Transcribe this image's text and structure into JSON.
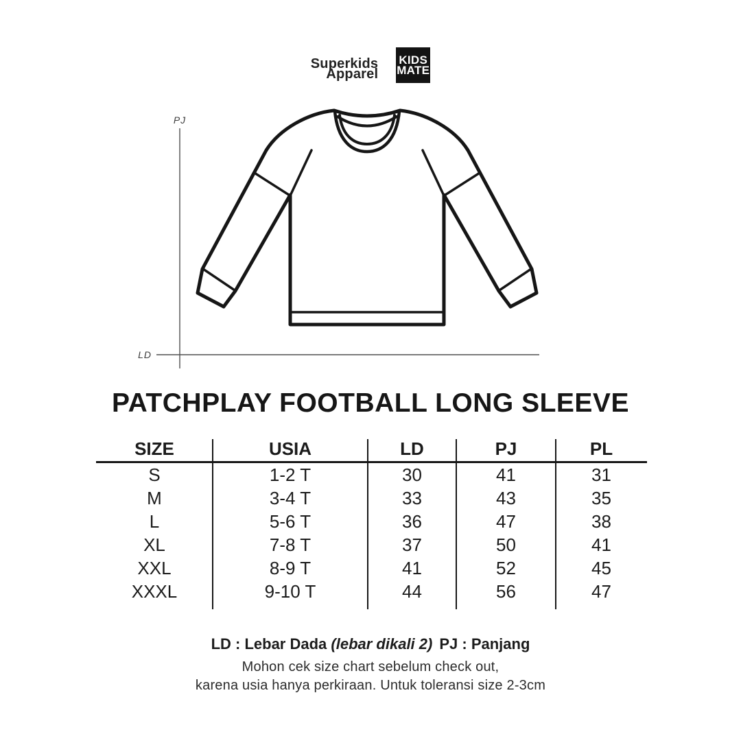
{
  "brand": {
    "wordmark_line1": "Superkids",
    "wordmark_line2": "Apparel",
    "logo_line1": "KIDS",
    "logo_line2": "MATE"
  },
  "diagram": {
    "vertical_axis_label": "PJ",
    "horizontal_axis_label": "LD"
  },
  "title": "PATCHPLAY FOOTBALL LONG SLEEVE",
  "size_table": {
    "columns": [
      "SIZE",
      "USIA",
      "LD",
      "PJ",
      "PL"
    ],
    "rows": [
      [
        "S",
        "1-2 T",
        "30",
        "41",
        "31"
      ],
      [
        "M",
        "3-4 T",
        "33",
        "43",
        "35"
      ],
      [
        "L",
        "5-6 T",
        "36",
        "47",
        "38"
      ],
      [
        "XL",
        "7-8 T",
        "37",
        "50",
        "41"
      ],
      [
        "XXL",
        "8-9 T",
        "41",
        "52",
        "45"
      ],
      [
        "XXXL",
        "9-10 T",
        "44",
        "56",
        "47"
      ]
    ]
  },
  "legend": {
    "ld_label": "LD : Lebar Dada",
    "ld_note": "(lebar dikali 2)",
    "pj_label": "PJ : Panjang"
  },
  "note": {
    "line1": "Mohon cek size chart sebelum check out,",
    "line2": "karena usia hanya perkiraan. Untuk toleransi size 2-3cm"
  },
  "colors": {
    "background": "#ffffff",
    "ink": "#161616",
    "dimension_line": "#4f4f4f",
    "logo_background": "#141414",
    "logo_text": "#ffffff"
  }
}
